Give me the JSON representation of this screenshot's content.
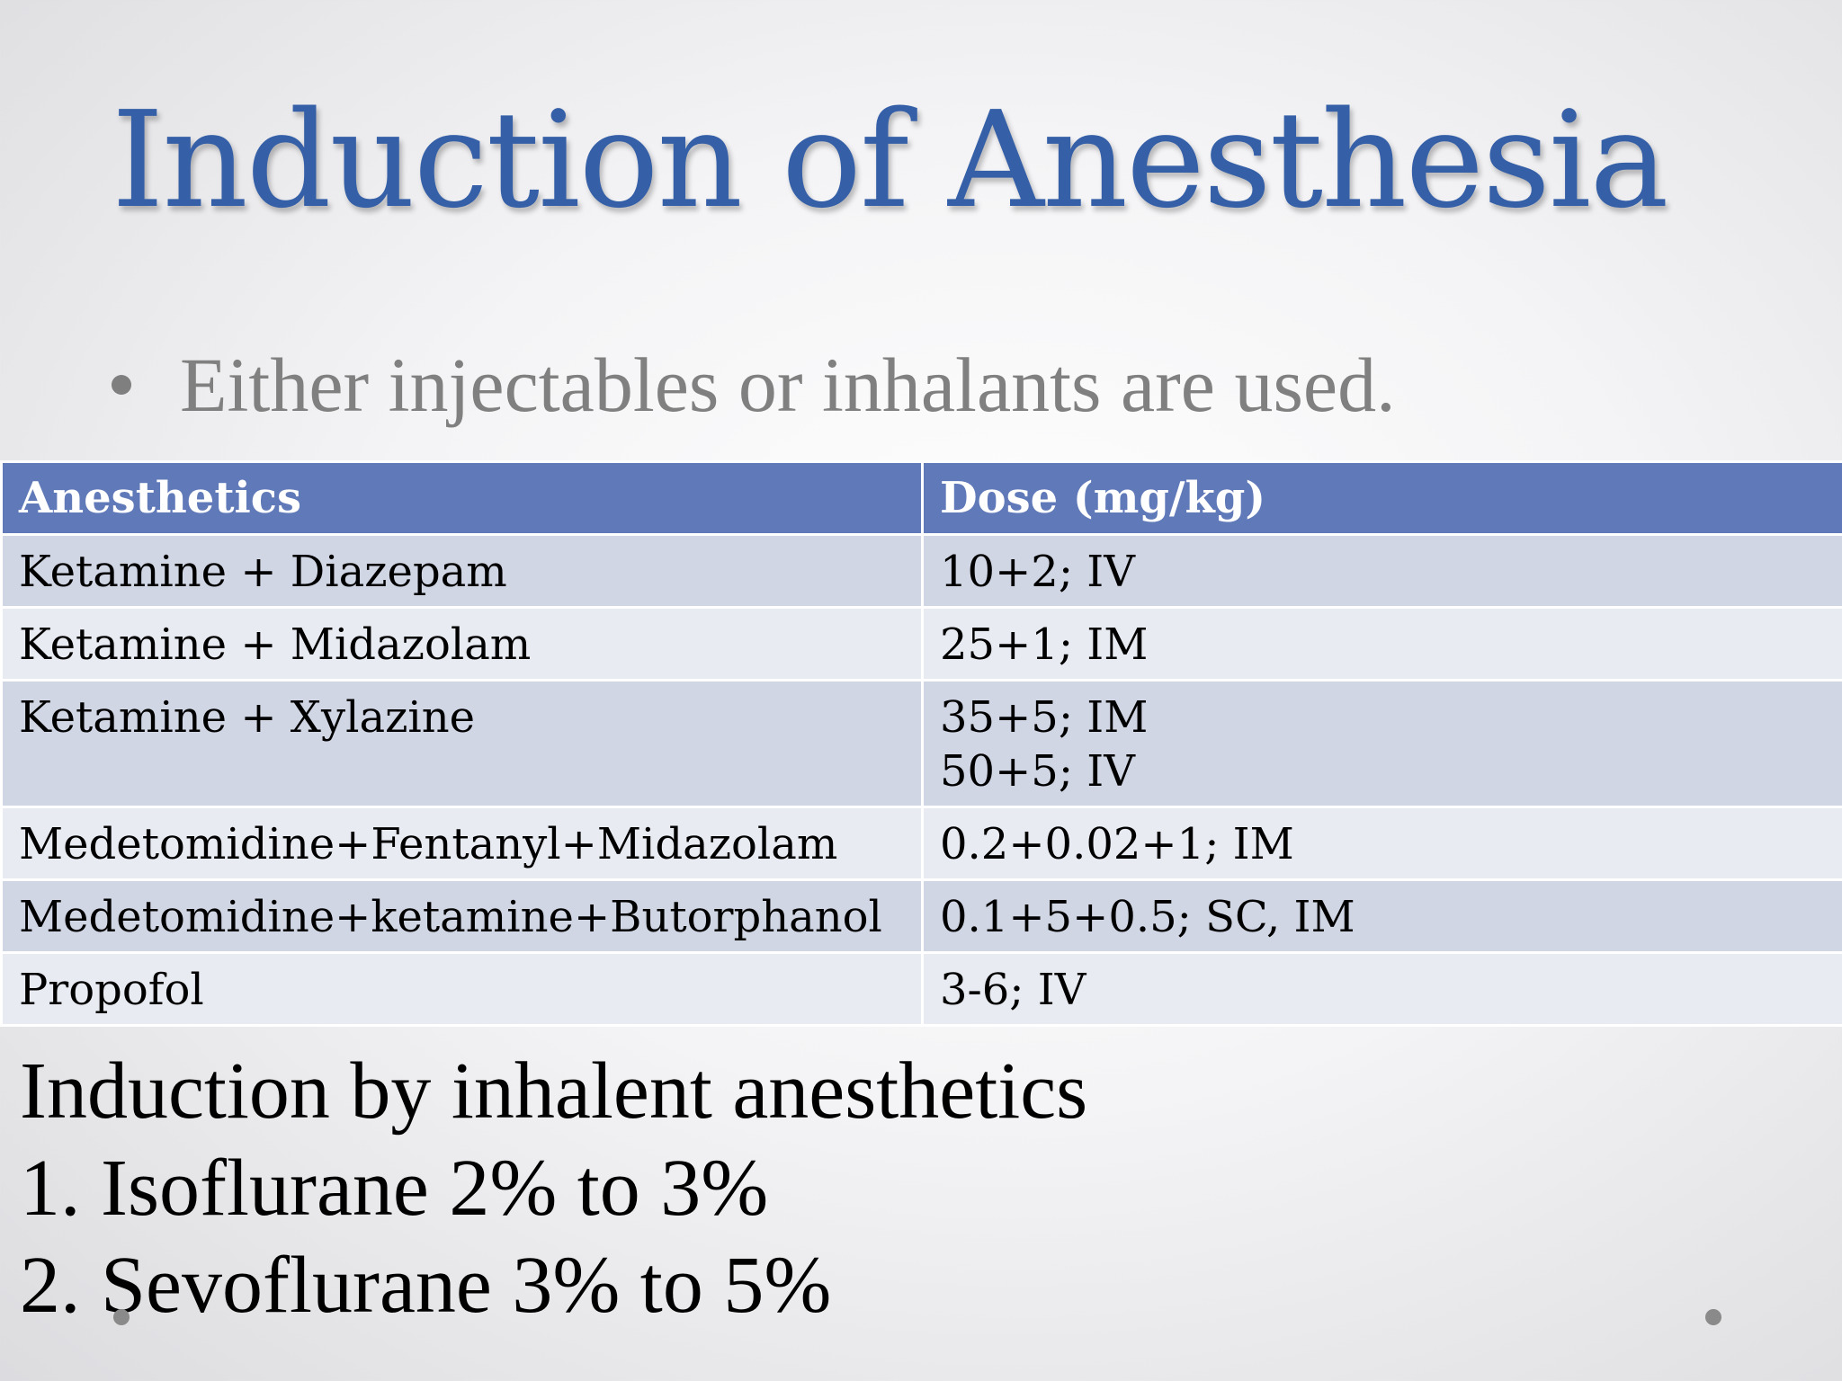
{
  "slide": {
    "title": "Induction of Anesthesia",
    "bullet": "Either injectables or inhalants are used."
  },
  "table": {
    "headers": [
      "Anesthetics",
      "Dose (mg/kg)"
    ],
    "rows": [
      {
        "drug": "Ketamine + Diazepam",
        "dose": [
          "10+2; IV"
        ]
      },
      {
        "drug": "Ketamine + Midazolam",
        "dose": [
          "25+1; IM"
        ]
      },
      {
        "drug": "Ketamine + Xylazine",
        "dose": [
          "35+5;  IM",
          "50+5; IV"
        ]
      },
      {
        "drug": "Medetomidine+Fentanyl+Midazolam",
        "dose": [
          "0.2+0.02+1; IM"
        ]
      },
      {
        "drug": "Medetomidine+ketamine+Butorphanol",
        "dose": [
          "0.1+5+0.5; SC, IM"
        ]
      },
      {
        "drug": "Propofol",
        "dose": [
          "3-6; IV"
        ]
      }
    ]
  },
  "inhalant": {
    "heading": "Induction by inhalent anesthetics",
    "items": [
      "1. Isoflurane 2% to 3%",
      "2. Sevoflurane 3% to 5%"
    ]
  },
  "colors": {
    "title": "#355fa7",
    "table_header": "#6079b8",
    "row_dark": "#d1d6e5",
    "row_light": "#e9ebf2"
  }
}
